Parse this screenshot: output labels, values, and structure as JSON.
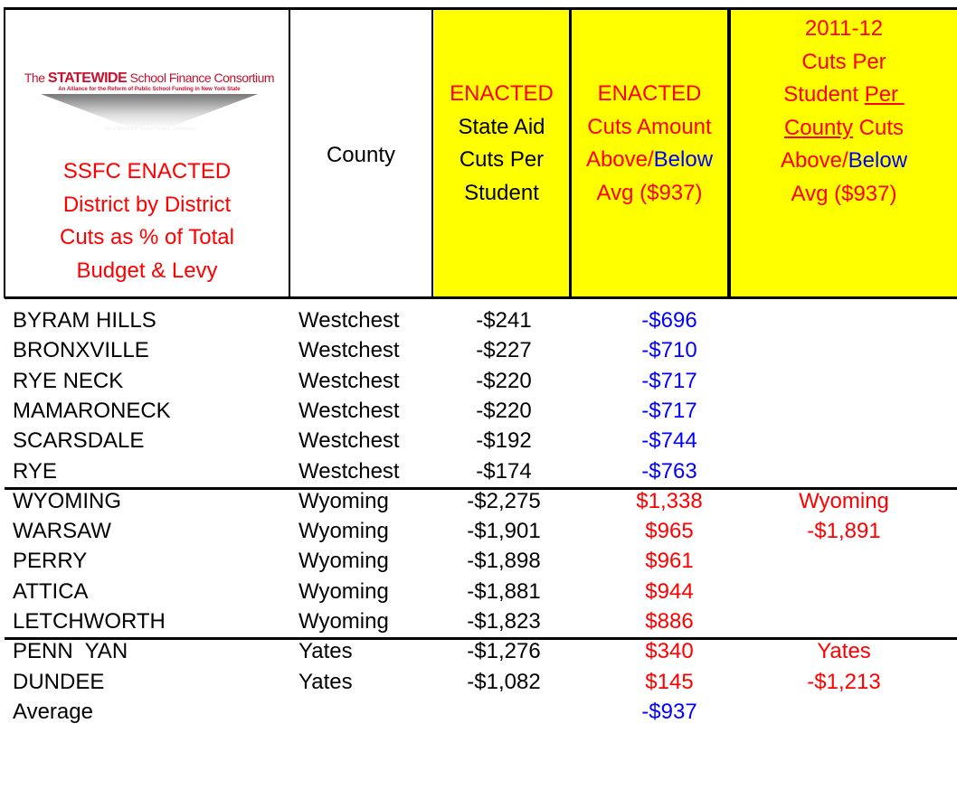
{
  "header": {
    "logo": {
      "title_parts": [
        {
          "text": "The ",
          "color": "#c8102e"
        },
        {
          "text": "STATEWIDE",
          "color": "#c8102e",
          "bold": true
        },
        {
          "text": " School Finance Consortium",
          "color": "#c8102e"
        }
      ],
      "subtitle": "An Alliance for the Reform of Public School Funding in New York State",
      "caption": "The STATEWIDE School Finance Consortium"
    },
    "columns": [
      {
        "lines": [
          [
            {
              "text": "SSFC ENACTED",
              "color": "#ff0000"
            }
          ],
          [
            {
              "text": "District by District",
              "color": "#ff0000"
            }
          ],
          [
            {
              "text": "Cuts as % of Total",
              "color": "#ff0000"
            }
          ],
          [
            {
              "text": "Budget & Levy",
              "color": "#ff0000"
            }
          ]
        ]
      },
      {
        "lines": [
          [
            {
              "text": "County",
              "color": "#000000"
            }
          ]
        ]
      },
      {
        "lines": [
          [
            {
              "text": "ENACTED",
              "color": "#ff0000"
            }
          ],
          [
            {
              "text": "State Aid",
              "color": "#000000"
            }
          ],
          [
            {
              "text": "Cuts Per",
              "color": "#000000"
            }
          ],
          [
            {
              "text": "Student",
              "color": "#000000"
            }
          ]
        ],
        "fill": "#ffff00"
      },
      {
        "lines": [
          [
            {
              "text": "ENACTED",
              "color": "#ff0000"
            }
          ],
          [
            {
              "text": "Cuts Amount",
              "color": "#ff0000"
            }
          ],
          [
            {
              "text": "Above/",
              "color": "#ff0000"
            },
            {
              "text": "Below",
              "color": "#0000ff"
            }
          ],
          [
            {
              "text": "Avg ($937)",
              "color": "#ff0000"
            }
          ]
        ],
        "fill": "#ffff00"
      },
      {
        "lines": [
          [
            {
              "text": "2011-12",
              "color": "#ff0000"
            }
          ],
          [
            {
              "text": "Cuts Per",
              "color": "#ff0000"
            }
          ],
          [
            {
              "text": "Student ",
              "color": "#ff0000"
            },
            {
              "text": "Per ",
              "color": "#ff0000",
              "underline": true
            }
          ],
          [
            {
              "text": "County",
              "color": "#ff0000",
              "underline": true
            },
            {
              "text": " Cuts",
              "color": "#ff0000"
            }
          ],
          [
            {
              "text": "Above/",
              "color": "#ff0000"
            },
            {
              "text": "Below",
              "color": "#0000ff"
            }
          ],
          [
            {
              "text": "Avg ($937)",
              "color": "#ff0000"
            }
          ]
        ],
        "fill": "#ffff00"
      }
    ]
  },
  "groups": [
    {
      "rows": [
        {
          "district": "BYRAM HILLS",
          "county": "Westchest",
          "cuts": "-$241",
          "diff": "-$696",
          "diff_color": "#0000ff"
        },
        {
          "district": "BRONXVILLE",
          "county": "Westchest",
          "cuts": "-$227",
          "diff": "-$710",
          "diff_color": "#0000ff"
        },
        {
          "district": "RYE NECK",
          "county": "Westchest",
          "cuts": "-$220",
          "diff": "-$717",
          "diff_color": "#0000ff"
        },
        {
          "district": "MAMARONECK",
          "county": "Westchest",
          "cuts": "-$220",
          "diff": "-$717",
          "diff_color": "#0000ff"
        },
        {
          "district": "SCARSDALE",
          "county": "Westchest",
          "cuts": "-$192",
          "diff": "-$744",
          "diff_color": "#0000ff"
        },
        {
          "district": "RYE",
          "county": "Westchest",
          "cuts": "-$174",
          "diff": "-$763",
          "diff_color": "#0000ff"
        }
      ]
    },
    {
      "rows": [
        {
          "district": "WYOMING",
          "county": "Wyoming",
          "cuts": "-$2,275",
          "diff": "$1,338",
          "diff_color": "#ff0000"
        },
        {
          "district": "WARSAW",
          "county": "Wyoming",
          "cuts": "-$1,901",
          "diff": "$965",
          "diff_color": "#ff0000"
        },
        {
          "district": "PERRY",
          "county": "Wyoming",
          "cuts": "-$1,898",
          "diff": "$961",
          "diff_color": "#ff0000"
        },
        {
          "district": "ATTICA",
          "county": "Wyoming",
          "cuts": "-$1,881",
          "diff": "$944",
          "diff_color": "#ff0000"
        },
        {
          "district": "LETCHWORTH",
          "county": "Wyoming",
          "cuts": "-$1,823",
          "diff": "$886",
          "diff_color": "#ff0000"
        }
      ],
      "summary": {
        "county": "Wyoming",
        "cuts": "-$1,891",
        "color": "#ff0000"
      }
    },
    {
      "rows": [
        {
          "district": "PENN  YAN",
          "county": "Yates",
          "cuts": "-$1,276",
          "diff": "$340",
          "diff_color": "#ff0000"
        },
        {
          "district": "DUNDEE",
          "county": "Yates",
          "cuts": "-$1,082",
          "diff": "$145",
          "diff_color": "#ff0000"
        }
      ],
      "summary": {
        "county": "Yates",
        "cuts": "-$1,213",
        "color": "#ff0000"
      }
    }
  ],
  "average": {
    "label": "Average",
    "diff": "-$937",
    "diff_color": "#0000ff"
  }
}
